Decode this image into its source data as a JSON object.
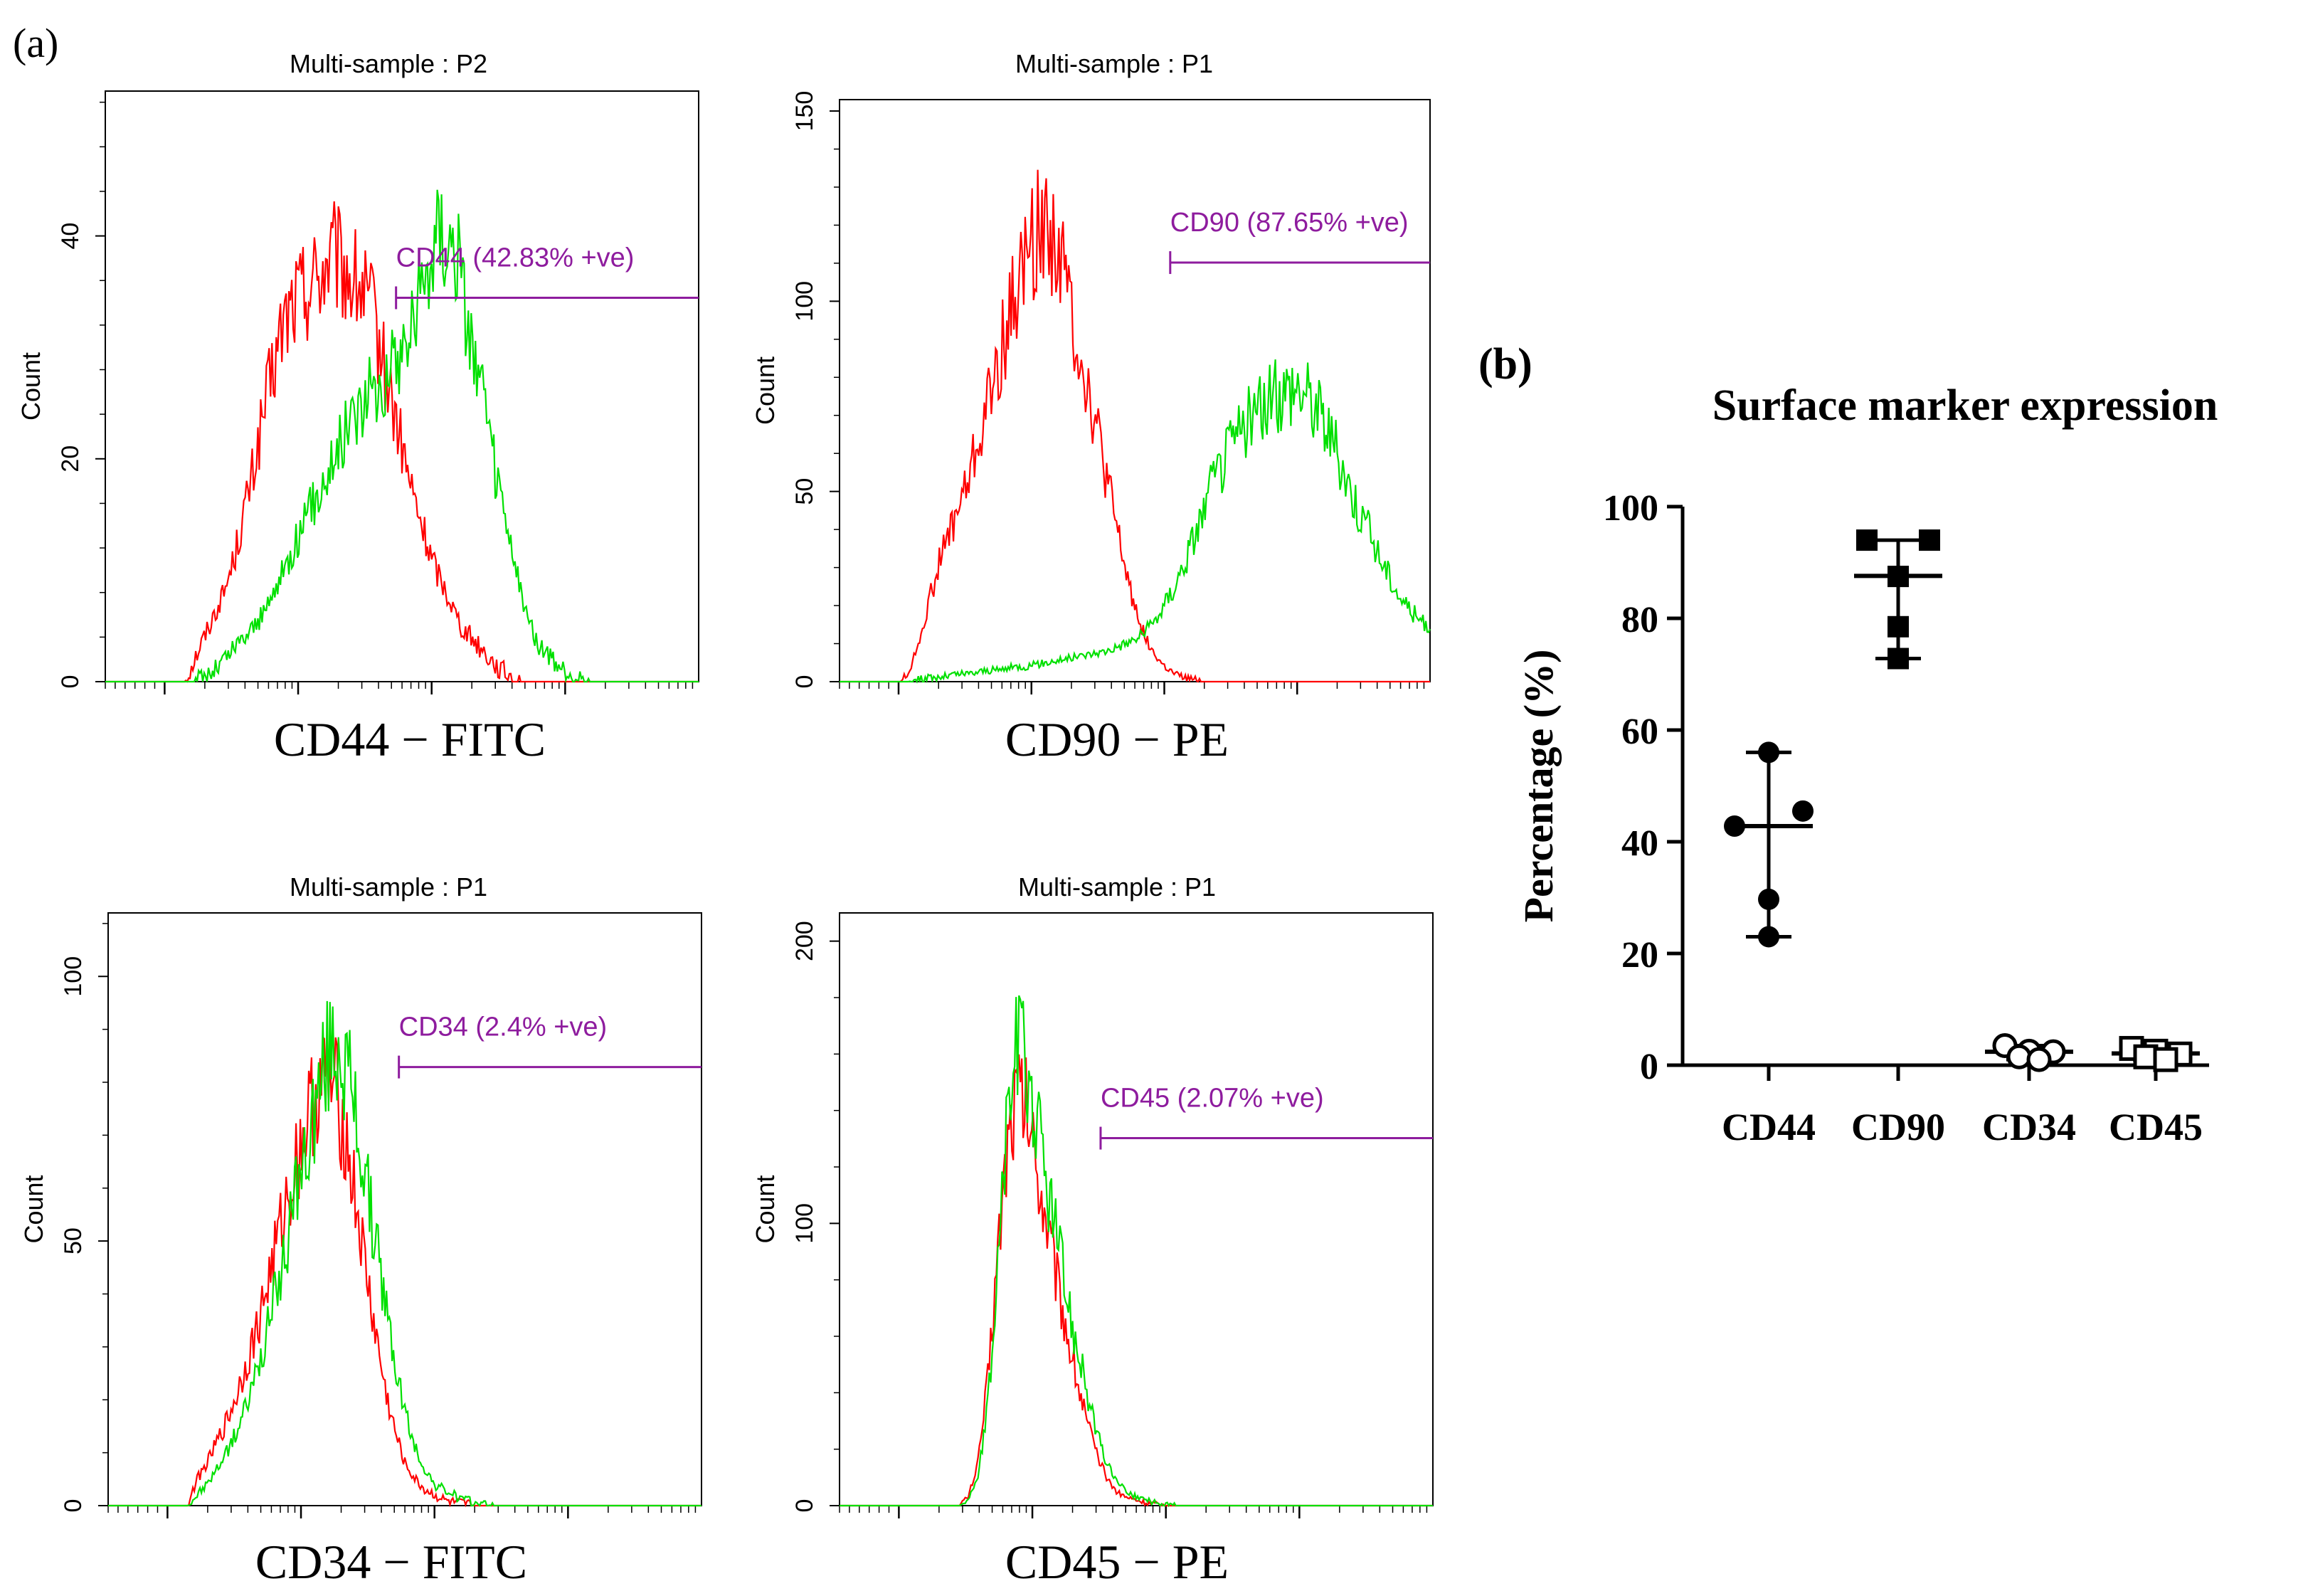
{
  "panel_labels": {
    "a": "(a)",
    "b": "(b)"
  },
  "colors": {
    "control": "#ff0000",
    "sample": "#00e000",
    "gate": "#8e1c9e",
    "axis": "#000000"
  },
  "chart_data": [
    {
      "id": "cd44",
      "type": "line",
      "title": "Multi-sample : P2",
      "xlabel": "CD44 − FITC",
      "ylabel": "Count",
      "ylim": [
        0,
        53
      ],
      "yticks": [
        0,
        20,
        40
      ],
      "xscale": "log",
      "x_decades": 4,
      "series": [
        {
          "color_key": "control",
          "values": [
            0,
            0,
            0,
            0,
            0,
            0,
            0,
            0,
            0,
            2,
            4,
            6,
            8,
            11,
            15,
            19,
            24,
            28,
            32,
            34,
            35,
            36,
            37,
            38,
            37,
            36,
            35,
            33,
            29,
            25,
            21,
            17,
            14,
            11,
            9,
            7,
            5,
            4,
            3,
            2,
            1,
            0.5,
            0,
            0,
            0,
            0,
            0,
            0,
            0,
            0,
            0,
            0,
            0,
            0,
            0,
            0,
            0,
            0,
            0,
            0,
            0
          ]
        },
        {
          "color_key": "sample",
          "values": [
            0,
            0,
            0,
            0,
            0,
            0,
            0,
            0,
            0,
            0,
            0.5,
            1,
            2,
            3,
            4,
            5,
            6,
            8,
            10,
            12,
            14,
            16,
            18,
            20,
            22,
            24,
            25,
            26,
            27,
            28,
            30,
            32,
            35,
            39,
            41,
            40,
            36,
            31,
            26,
            21,
            16,
            12,
            8,
            5,
            3,
            2,
            1,
            0.5,
            0.2,
            0,
            0,
            0,
            0,
            0,
            0,
            0,
            0,
            0,
            0,
            0,
            0
          ]
        }
      ],
      "gate": {
        "label": "CD44 (42.83% +ve)",
        "percent_positive": 42.83
      }
    },
    {
      "id": "cd90",
      "type": "line",
      "title": "Multi-sample : P1",
      "xlabel": "CD90 − PE",
      "ylabel": "Count",
      "ylim": [
        0,
        153
      ],
      "yticks": [
        0,
        50,
        100,
        150
      ],
      "xscale": "log",
      "x_decades": 4,
      "series": [
        {
          "color_key": "control",
          "values": [
            0,
            0,
            0,
            0,
            0,
            0,
            0,
            2,
            10,
            20,
            30,
            38,
            45,
            52,
            62,
            72,
            82,
            93,
            103,
            112,
            118,
            120,
            116,
            105,
            92,
            80,
            68,
            55,
            42,
            30,
            20,
            12,
            7,
            4,
            2,
            1,
            0.5,
            0,
            0,
            0,
            0,
            0,
            0,
            0,
            0,
            0,
            0,
            0,
            0,
            0,
            0,
            0,
            0,
            0,
            0,
            0,
            0,
            0,
            0,
            0,
            0
          ]
        },
        {
          "color_key": "sample",
          "values": [
            0,
            0,
            0,
            0,
            0,
            0,
            0,
            0,
            0.5,
            1,
            1,
            1.5,
            2,
            2,
            2.5,
            3,
            3,
            3.5,
            4,
            4,
            4.5,
            5,
            5.5,
            6,
            6.5,
            7,
            7.5,
            8,
            9,
            10,
            11,
            13,
            16,
            20,
            25,
            31,
            38,
            45,
            52,
            58,
            63,
            67,
            70,
            72,
            74,
            76,
            78,
            77,
            74,
            70,
            64,
            57,
            50,
            44,
            38,
            32,
            27,
            22,
            19,
            16,
            14
          ]
        }
      ],
      "gate": {
        "label": "CD90 (87.65% +ve)",
        "percent_positive": 87.65
      }
    },
    {
      "id": "cd34",
      "type": "line",
      "title": "Multi-sample : P1",
      "xlabel": "CD34 − FITC",
      "ylabel": "Count",
      "ylim": [
        0,
        112
      ],
      "yticks": [
        0,
        50,
        100
      ],
      "xscale": "log",
      "x_decades": 4,
      "series": [
        {
          "color_key": "control",
          "values": [
            0,
            0,
            0,
            0,
            0,
            0,
            0,
            0,
            0,
            5,
            8,
            12,
            16,
            21,
            27,
            33,
            41,
            49,
            57,
            65,
            72,
            78,
            81,
            78,
            70,
            58,
            45,
            33,
            22,
            14,
            8,
            5,
            3,
            2,
            1,
            0.5,
            0.3,
            0,
            0,
            0,
            0,
            0,
            0,
            0,
            0,
            0,
            0,
            0,
            0,
            0,
            0,
            0,
            0,
            0,
            0,
            0,
            0,
            0,
            0,
            0,
            0
          ]
        },
        {
          "color_key": "sample",
          "values": [
            0,
            0,
            0,
            0,
            0,
            0,
            0,
            0,
            0,
            2,
            4,
            7,
            10,
            14,
            19,
            25,
            32,
            40,
            49,
            58,
            67,
            76,
            84,
            88,
            84,
            74,
            62,
            50,
            38,
            27,
            18,
            11,
            7,
            4,
            3,
            2,
            1,
            0.5,
            0.3,
            0,
            0,
            0,
            0,
            0,
            0,
            0,
            0,
            0,
            0,
            0,
            0,
            0,
            0,
            0,
            0,
            0,
            0,
            0,
            0,
            0,
            0
          ]
        }
      ],
      "gate": {
        "label": "CD34 (2.4% +ve)",
        "percent_positive": 2.4
      }
    },
    {
      "id": "cd45",
      "type": "line",
      "title": "Multi-sample : P1",
      "xlabel": "CD45 − PE",
      "ylabel": "Count",
      "ylim": [
        0,
        210
      ],
      "yticks": [
        0,
        100,
        200
      ],
      "xscale": "log",
      "x_decades": 4,
      "series": [
        {
          "color_key": "control",
          "values": [
            0,
            0,
            0,
            0,
            0,
            0,
            0,
            0,
            0,
            0,
            0,
            0,
            0,
            3,
            15,
            45,
            90,
            130,
            148,
            140,
            120,
            100,
            80,
            62,
            45,
            30,
            18,
            10,
            5,
            3,
            2,
            1,
            0.5,
            0,
            0,
            0,
            0,
            0,
            0,
            0,
            0,
            0,
            0,
            0,
            0,
            0,
            0,
            0,
            0,
            0,
            0,
            0,
            0,
            0,
            0,
            0,
            0,
            0,
            0,
            0,
            0
          ]
        },
        {
          "color_key": "sample",
          "values": [
            0,
            0,
            0,
            0,
            0,
            0,
            0,
            0,
            0,
            0,
            0,
            0,
            0,
            2,
            10,
            35,
            85,
            140,
            165,
            155,
            135,
            115,
            95,
            75,
            57,
            40,
            26,
            15,
            9,
            5,
            3,
            2,
            1,
            0.5,
            0,
            0,
            0,
            0,
            0,
            0,
            0,
            0,
            0,
            0,
            0,
            0,
            0,
            0,
            0,
            0,
            0,
            0,
            0,
            0,
            0,
            0,
            0,
            0,
            0,
            0,
            0
          ]
        }
      ],
      "gate": {
        "label": "CD45 (2.07% +ve)",
        "percent_positive": 2.07
      }
    },
    {
      "id": "surface",
      "type": "scatter",
      "title": "Surface marker expression",
      "ylabel": "Percentage (%)",
      "ylim": [
        0,
        100
      ],
      "yticks": [
        0,
        20,
        40,
        60,
        80,
        100
      ],
      "categories": [
        "CD44",
        "CD90",
        "CD34",
        "CD45"
      ],
      "groups": [
        {
          "category": "CD44",
          "marker": "circle-filled",
          "points": [
            56,
            45.5,
            42.8,
            29.7,
            23
          ],
          "mean": 42.8,
          "sd_low": 23,
          "sd_high": 56
        },
        {
          "category": "CD90",
          "marker": "square-filled",
          "points": [
            94,
            94,
            87.5,
            78.5,
            72.8
          ],
          "mean": 87.6,
          "sd_low": 72.8,
          "sd_high": 94
        },
        {
          "category": "CD34",
          "marker": "circle-open",
          "points": [
            3.5,
            2.5,
            2.4,
            1.5,
            1
          ],
          "mean": 2.4,
          "sd_low": 1,
          "sd_high": 3.5
        },
        {
          "category": "CD45",
          "marker": "square-open",
          "points": [
            3,
            2.5,
            2,
            1.5,
            1
          ],
          "mean": 2.1,
          "sd_low": 1,
          "sd_high": 3
        }
      ]
    }
  ]
}
